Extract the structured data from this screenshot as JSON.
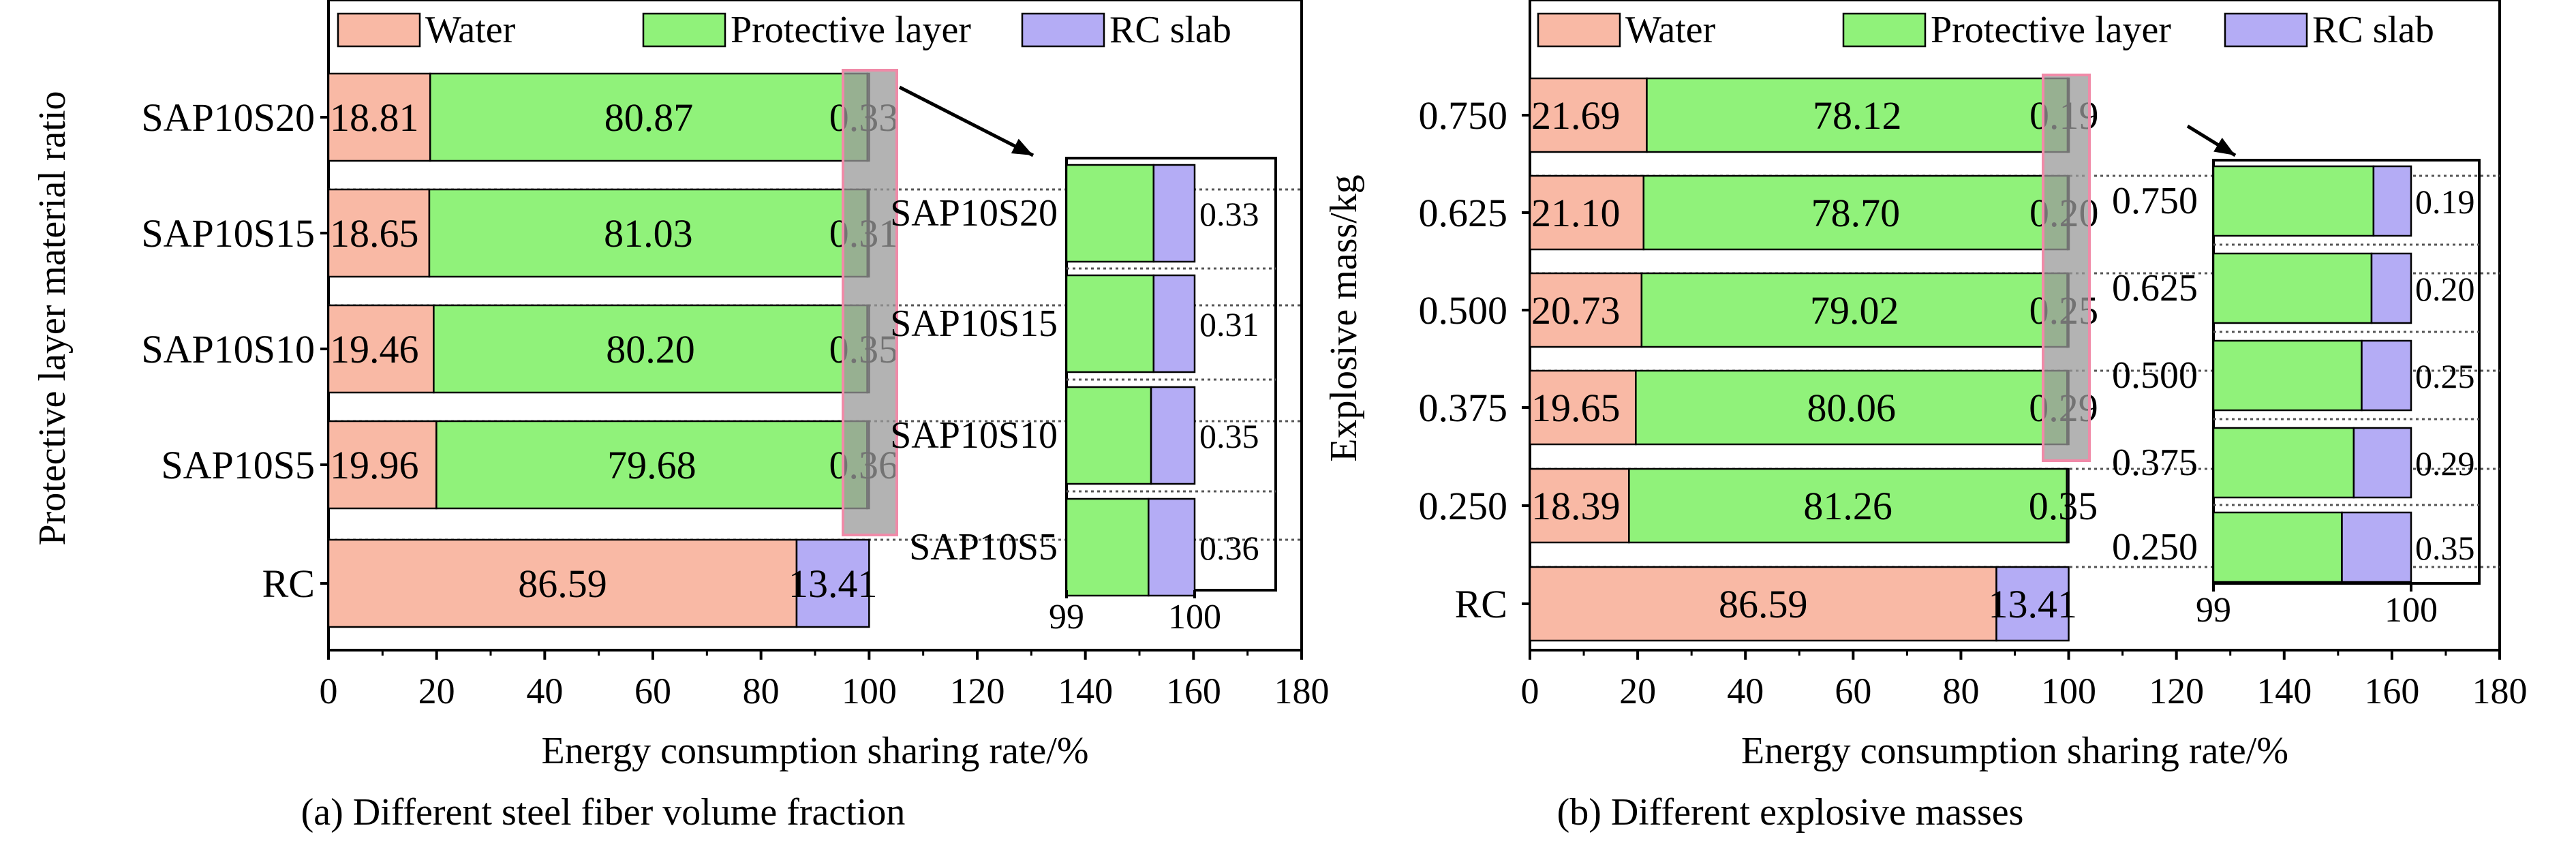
{
  "legend": {
    "water": "Water",
    "protective": "Protective layer",
    "rc": "RC slab"
  },
  "colors": {
    "water": "#f9b9a5",
    "protective": "#90f27a",
    "rc": "#b4acf5"
  },
  "chart_data": [
    {
      "type": "bar",
      "orientation": "horizontal-stacked",
      "caption": "(a) Different steel fiber volume fraction",
      "xlabel": "Energy consumption sharing rate/%",
      "ylabel": "Protective layer material ratio",
      "xlim": [
        0,
        180
      ],
      "xticks": [
        "0",
        "20",
        "40",
        "60",
        "80",
        "100",
        "120",
        "140",
        "160",
        "180"
      ],
      "categories": [
        "SAP10S20",
        "SAP10S15",
        "SAP10S10",
        "SAP10S5",
        "RC"
      ],
      "series": [
        {
          "name": "Water",
          "values": [
            18.81,
            18.65,
            19.46,
            19.96,
            86.59
          ],
          "labels": [
            "18.81",
            "18.65",
            "19.46",
            "19.96",
            "86.59"
          ]
        },
        {
          "name": "Protective layer",
          "values": [
            80.87,
            81.03,
            80.2,
            79.68,
            0
          ],
          "labels": [
            "80.87",
            "81.03",
            "80.20",
            "79.68",
            ""
          ]
        },
        {
          "name": "RC slab",
          "values": [
            0.33,
            0.31,
            0.35,
            0.36,
            13.41
          ],
          "labels": [
            "0.33",
            "0.31",
            "0.35",
            "0.36",
            "13.41"
          ]
        }
      ],
      "inset": {
        "xlim": [
          99,
          100
        ],
        "xticks": [
          "99",
          "100"
        ],
        "categories": [
          "SAP10S20",
          "SAP10S15",
          "SAP10S10",
          "SAP10S5"
        ],
        "labels": [
          "0.33",
          "0.31",
          "0.35",
          "0.36"
        ]
      },
      "legend_position": "top"
    },
    {
      "type": "bar",
      "orientation": "horizontal-stacked",
      "caption": "(b) Different explosive masses",
      "xlabel": "Energy consumption sharing rate/%",
      "ylabel": "Explosive mass/kg",
      "xlim": [
        0,
        180
      ],
      "xticks": [
        "0",
        "20",
        "40",
        "60",
        "80",
        "100",
        "120",
        "140",
        "160",
        "180"
      ],
      "categories": [
        "0.750",
        "0.625",
        "0.500",
        "0.375",
        "0.250",
        "RC"
      ],
      "series": [
        {
          "name": "Water",
          "values": [
            21.69,
            21.1,
            20.73,
            19.65,
            18.39,
            86.59
          ],
          "labels": [
            "21.69",
            "21.10",
            "20.73",
            "19.65",
            "18.39",
            "86.59"
          ]
        },
        {
          "name": "Protective layer",
          "values": [
            78.12,
            78.7,
            79.02,
            80.06,
            81.26,
            0
          ],
          "labels": [
            "78.12",
            "78.70",
            "79.02",
            "80.06",
            "81.26",
            ""
          ]
        },
        {
          "name": "RC slab",
          "values": [
            0.19,
            0.2,
            0.25,
            0.29,
            0.35,
            13.41
          ],
          "labels": [
            "0.19",
            "0.20",
            "0.25",
            "0.29",
            "0.35",
            "13.41"
          ]
        }
      ],
      "inset": {
        "xlim": [
          99,
          100
        ],
        "xticks": [
          "99",
          "100"
        ],
        "categories": [
          "0.750",
          "0.625",
          "0.500",
          "0.375",
          "0.250"
        ],
        "labels": [
          "0.19",
          "0.20",
          "0.25",
          "0.29",
          "0.35"
        ]
      },
      "legend_position": "top"
    }
  ]
}
